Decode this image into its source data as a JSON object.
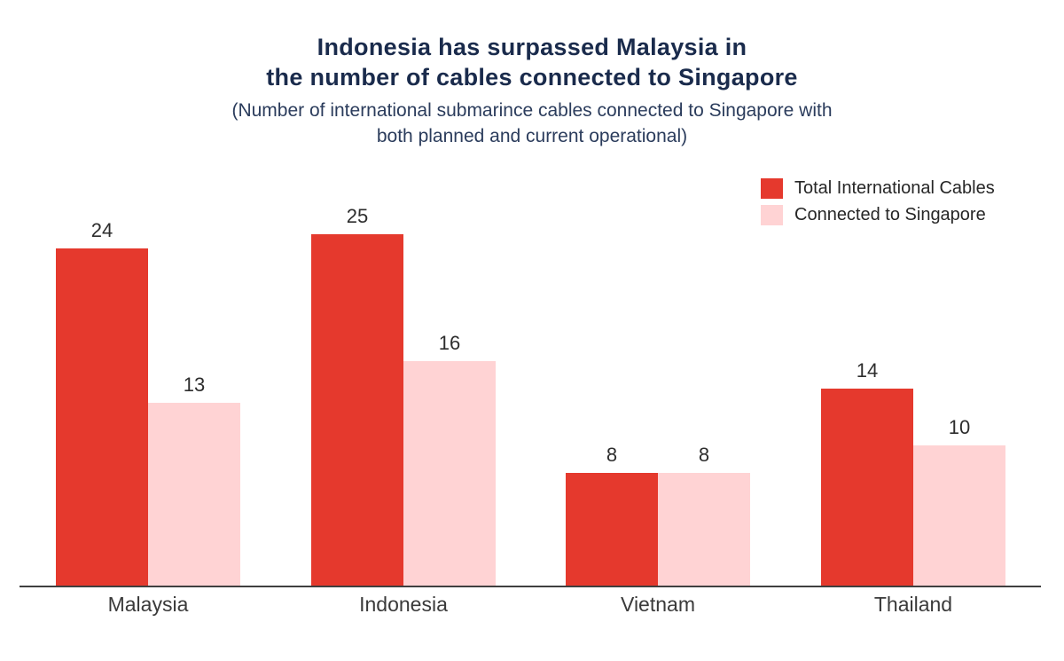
{
  "header": {
    "title_lines": [
      "Indonesia has surpassed Malaysia in",
      "the number of cables connected to Singapore"
    ],
    "subtitle_lines": [
      "(Number of international submarince cables connected to Singapore with",
      "both planned and current operational)"
    ]
  },
  "colors": {
    "title_navy": "#1a2b4c",
    "subtitle_navy": "#2b3c5c",
    "series_red": "#e5392d",
    "series_pink": "#ffd3d4",
    "axis_line": "#3f3f3f",
    "label_dark": "#2d2d2d"
  },
  "chart_data": {
    "type": "bar",
    "title": "Indonesia has surpassed Malaysia in the number of cables connected to Singapore",
    "subtitle": "(Number of international submarince cables connected to Singapore with both planned and current operational)",
    "categories": [
      "Malaysia",
      "Indonesia",
      "Vietnam",
      "Thailand"
    ],
    "series": [
      {
        "name": "Total International Cables",
        "color": "#e5392d",
        "values": [
          24,
          25,
          8,
          14
        ]
      },
      {
        "name": "Connected to Singapore",
        "color": "#ffd3d4",
        "values": [
          13,
          16,
          8,
          10
        ]
      }
    ],
    "value_labels": [
      {
        "category": "Malaysia",
        "total": 24,
        "singapore": 13
      },
      {
        "category": "Indonesia",
        "total": 25,
        "singapore": 16
      },
      {
        "category": "Vietnam",
        "total": 8,
        "singapore": 8
      },
      {
        "category": "Thailand",
        "total": 14,
        "singapore": 10
      }
    ],
    "xlabel": "",
    "ylabel": "",
    "ylim": [
      0,
      25
    ],
    "grid": false,
    "y_axis_shown": false,
    "legend_position": "top-right"
  }
}
